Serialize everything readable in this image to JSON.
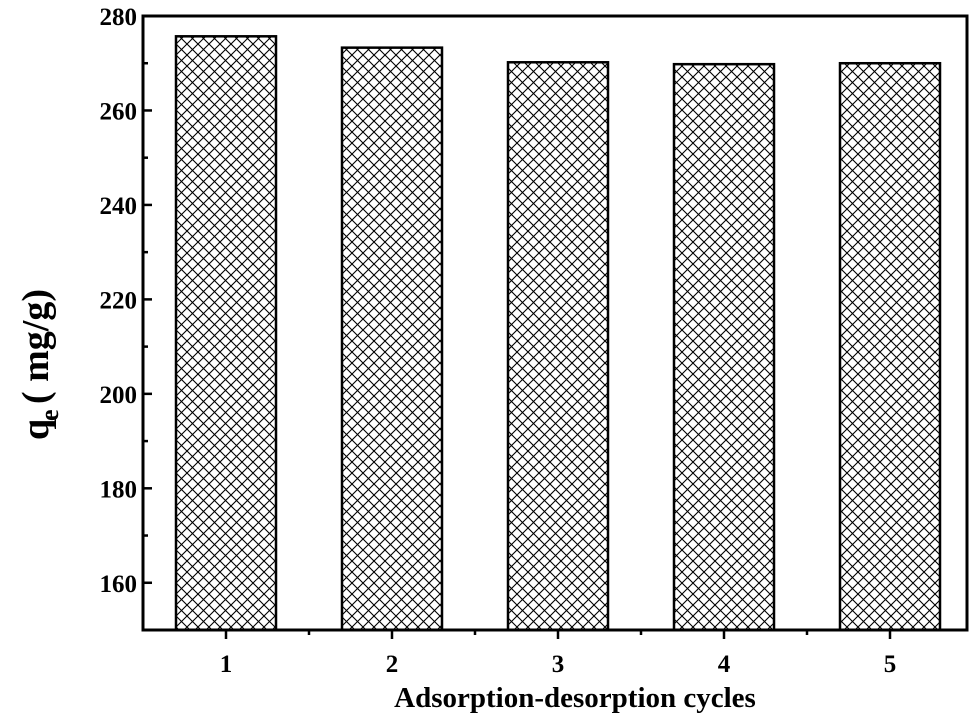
{
  "chart_data": {
    "type": "bar",
    "categories": [
      "1",
      "2",
      "3",
      "4",
      "5"
    ],
    "values": [
      275.7,
      273.3,
      270.2,
      269.8,
      270.0
    ],
    "ylim": [
      150,
      280
    ],
    "yticks": [
      160,
      180,
      200,
      220,
      240,
      260,
      280
    ],
    "xlabel": "Adsorption-desorption cycles",
    "ylabel": {
      "main": "q",
      "subscript": "e",
      "unit": "( mg/g)"
    },
    "bar_fill": "crosshatch",
    "bar_color": "#000000",
    "grid": false,
    "legend": "none"
  }
}
